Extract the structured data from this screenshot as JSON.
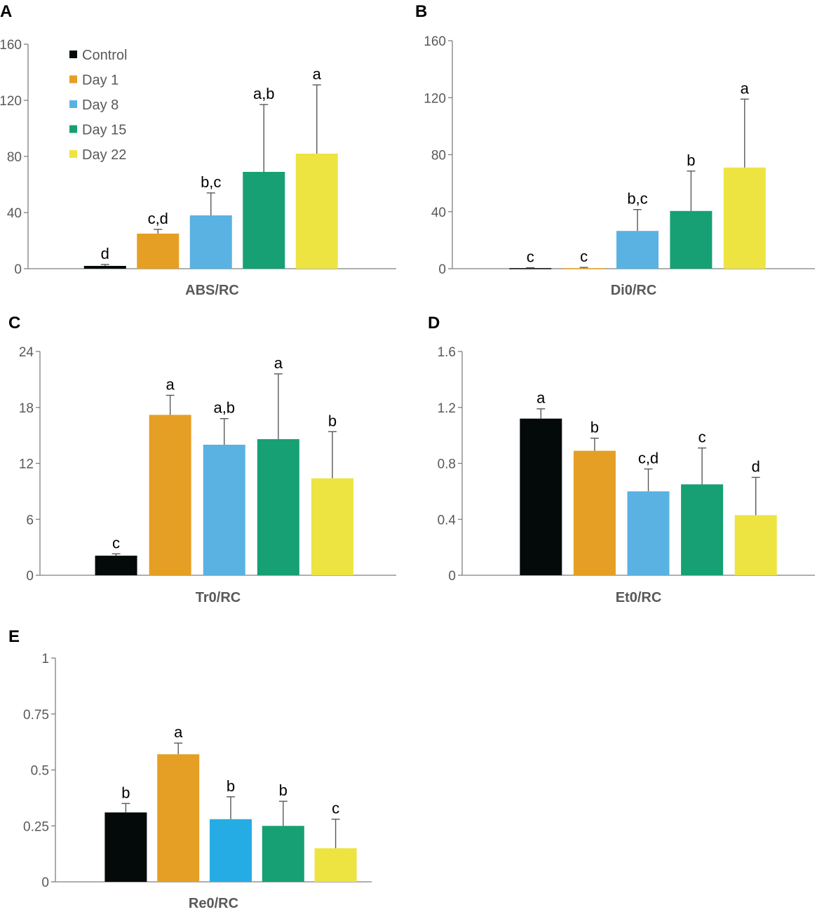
{
  "chart_data": [
    {
      "panel": "A",
      "type": "bar",
      "xlabel": "ABS/RC",
      "ylim": [
        0,
        160
      ],
      "yticks": [
        "0",
        "40",
        "80",
        "120",
        "160"
      ],
      "categories": [
        "Control",
        "Day 1",
        "Day 8",
        "Day 15",
        "Day 22"
      ],
      "values": [
        2,
        25,
        38,
        69,
        82
      ],
      "errors": [
        1,
        3,
        16,
        48,
        49
      ],
      "significance": [
        "d",
        "c,d",
        "b,c",
        "a,b",
        "a"
      ],
      "legend": [
        "Control",
        "Day 1",
        "Day 8",
        "Day 15",
        "Day 22"
      ]
    },
    {
      "panel": "B",
      "type": "bar",
      "xlabel": "Di0/RC",
      "ylim": [
        0,
        160
      ],
      "yticks": [
        "0",
        "40",
        "80",
        "120",
        "160"
      ],
      "categories": [
        "Control",
        "Day 1",
        "Day 8",
        "Day 15",
        "Day 22"
      ],
      "values": [
        0.4,
        0.4,
        26.5,
        40.5,
        71
      ],
      "errors": [
        0.3,
        0.5,
        15,
        28,
        48
      ],
      "significance": [
        "c",
        "c",
        "b,c",
        "b",
        "a"
      ]
    },
    {
      "panel": "C",
      "type": "bar",
      "xlabel": "Tr0/RC",
      "ylim": [
        0,
        24
      ],
      "yticks": [
        "0",
        "6",
        "12",
        "18",
        "24"
      ],
      "categories": [
        "Control",
        "Day 1",
        "Day 8",
        "Day 15",
        "Day 22"
      ],
      "values": [
        2.1,
        17.2,
        14,
        14.6,
        10.4
      ],
      "errors": [
        0.2,
        2.1,
        2.8,
        7,
        5
      ],
      "significance": [
        "c",
        "a",
        "a,b",
        "a",
        "b"
      ]
    },
    {
      "panel": "D",
      "type": "bar",
      "xlabel": "Et0/RC",
      "ylim": [
        0,
        1.6
      ],
      "yticks": [
        "0",
        "0.4",
        "0.8",
        "1.2",
        "1.6"
      ],
      "categories": [
        "Control",
        "Day 1",
        "Day 8",
        "Day 15",
        "Day 22"
      ],
      "values": [
        1.12,
        0.89,
        0.6,
        0.65,
        0.43
      ],
      "errors": [
        0.07,
        0.09,
        0.16,
        0.26,
        0.27
      ],
      "significance": [
        "a",
        "b",
        "c,d",
        "c",
        "d"
      ]
    },
    {
      "panel": "E",
      "type": "bar",
      "xlabel": "Re0/RC",
      "ylim": [
        0,
        1
      ],
      "yticks": [
        "0",
        "0.25",
        "0.5",
        "0.75",
        "1"
      ],
      "categories": [
        "Control",
        "Day 1",
        "Day 8",
        "Day 15",
        "Day 22"
      ],
      "values": [
        0.31,
        0.57,
        0.28,
        0.25,
        0.15
      ],
      "errors": [
        0.04,
        0.05,
        0.1,
        0.11,
        0.13
      ],
      "significance": [
        "b",
        "a",
        "b",
        "b",
        "c"
      ]
    }
  ],
  "colors": [
    "#040a0a",
    "#e59f24",
    "#59b2e2",
    "#16a074",
    "#ede442"
  ],
  "colors_panel_e": [
    "#040a0a",
    "#e59f24",
    "#26ace4",
    "#16a074",
    "#ede442"
  ]
}
